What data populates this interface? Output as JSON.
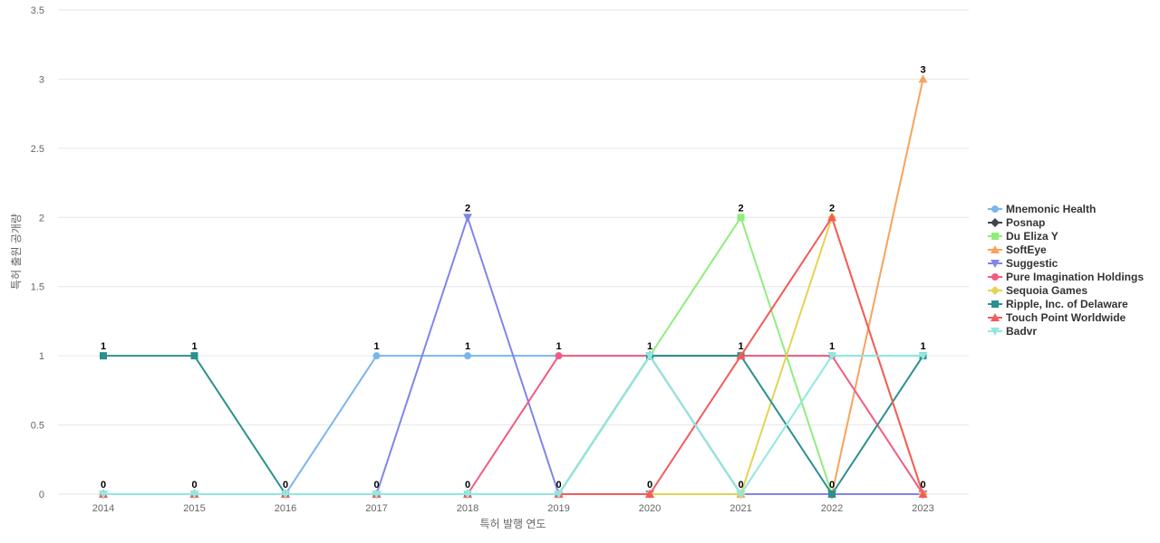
{
  "chart_data": {
    "type": "line",
    "xlabel": "특허 발행 연도",
    "ylabel": "특허 출원 공개량",
    "x": [
      "2014",
      "2015",
      "2016",
      "2017",
      "2018",
      "2019",
      "2020",
      "2021",
      "2022",
      "2023"
    ],
    "ylim": [
      0,
      3.5
    ],
    "yticks": [
      "0",
      "0.5",
      "1",
      "1.5",
      "2",
      "2.5",
      "3",
      "3.5"
    ],
    "grid": true,
    "legend_position": "right",
    "series": [
      {
        "name": "Mnemonic Health",
        "color": "#7cb5ec",
        "marker": "circle",
        "values": [
          0,
          0,
          0,
          1,
          1,
          1,
          1,
          1,
          1,
          1
        ]
      },
      {
        "name": "Posnap",
        "color": "#434348",
        "marker": "diamond",
        "values": [
          0,
          0,
          0,
          0,
          0,
          0,
          1,
          0,
          0,
          0
        ]
      },
      {
        "name": "Du Eliza Y",
        "color": "#90ed7d",
        "marker": "square",
        "values": [
          0,
          0,
          0,
          0,
          0,
          0,
          1,
          2,
          0,
          0
        ]
      },
      {
        "name": "SoftEye",
        "color": "#f7a35c",
        "marker": "triangle",
        "values": [
          0,
          0,
          0,
          0,
          0,
          0,
          0,
          0,
          0,
          3
        ]
      },
      {
        "name": "Suggestic",
        "color": "#8085e9",
        "marker": "triangle-down",
        "values": [
          0,
          0,
          0,
          0,
          2,
          0,
          0,
          0,
          0,
          0
        ]
      },
      {
        "name": "Pure Imagination Holdings",
        "color": "#f15c80",
        "marker": "circle",
        "values": [
          0,
          0,
          0,
          0,
          0,
          1,
          1,
          1,
          1,
          0
        ]
      },
      {
        "name": "Sequoia Games",
        "color": "#e4d354",
        "marker": "diamond",
        "values": [
          0,
          0,
          0,
          0,
          0,
          0,
          0,
          0,
          2,
          0
        ]
      },
      {
        "name": "Ripple, Inc. of Delaware",
        "color": "#2b908f",
        "marker": "square",
        "values": [
          1,
          1,
          0,
          0,
          0,
          0,
          1,
          1,
          0,
          1
        ]
      },
      {
        "name": "Touch Point Worldwide",
        "color": "#f45b5b",
        "marker": "triangle",
        "values": [
          0,
          0,
          0,
          0,
          0,
          0,
          0,
          1,
          2,
          0
        ]
      },
      {
        "name": "Badvr",
        "color": "#91e8e1",
        "marker": "triangle-down",
        "values": [
          0,
          0,
          0,
          0,
          0,
          0,
          1,
          0,
          1,
          1
        ]
      }
    ],
    "data_labels": [
      {
        "x": "2014",
        "value": 1
      },
      {
        "x": "2014",
        "value": 0
      },
      {
        "x": "2015",
        "value": 1
      },
      {
        "x": "2015",
        "value": 0
      },
      {
        "x": "2016",
        "value": 0
      },
      {
        "x": "2017",
        "value": 1
      },
      {
        "x": "2017",
        "value": 0
      },
      {
        "x": "2018",
        "value": 2
      },
      {
        "x": "2018",
        "value": 1
      },
      {
        "x": "2018",
        "value": 0
      },
      {
        "x": "2019",
        "value": 1
      },
      {
        "x": "2019",
        "value": 0
      },
      {
        "x": "2020",
        "value": 1
      },
      {
        "x": "2020",
        "value": 0
      },
      {
        "x": "2021",
        "value": 2
      },
      {
        "x": "2021",
        "value": 1
      },
      {
        "x": "2021",
        "value": 0
      },
      {
        "x": "2022",
        "value": 2
      },
      {
        "x": "2022",
        "value": 1
      },
      {
        "x": "2022",
        "value": 0
      },
      {
        "x": "2023",
        "value": 3
      },
      {
        "x": "2023",
        "value": 1
      },
      {
        "x": "2023",
        "value": 0
      }
    ]
  }
}
